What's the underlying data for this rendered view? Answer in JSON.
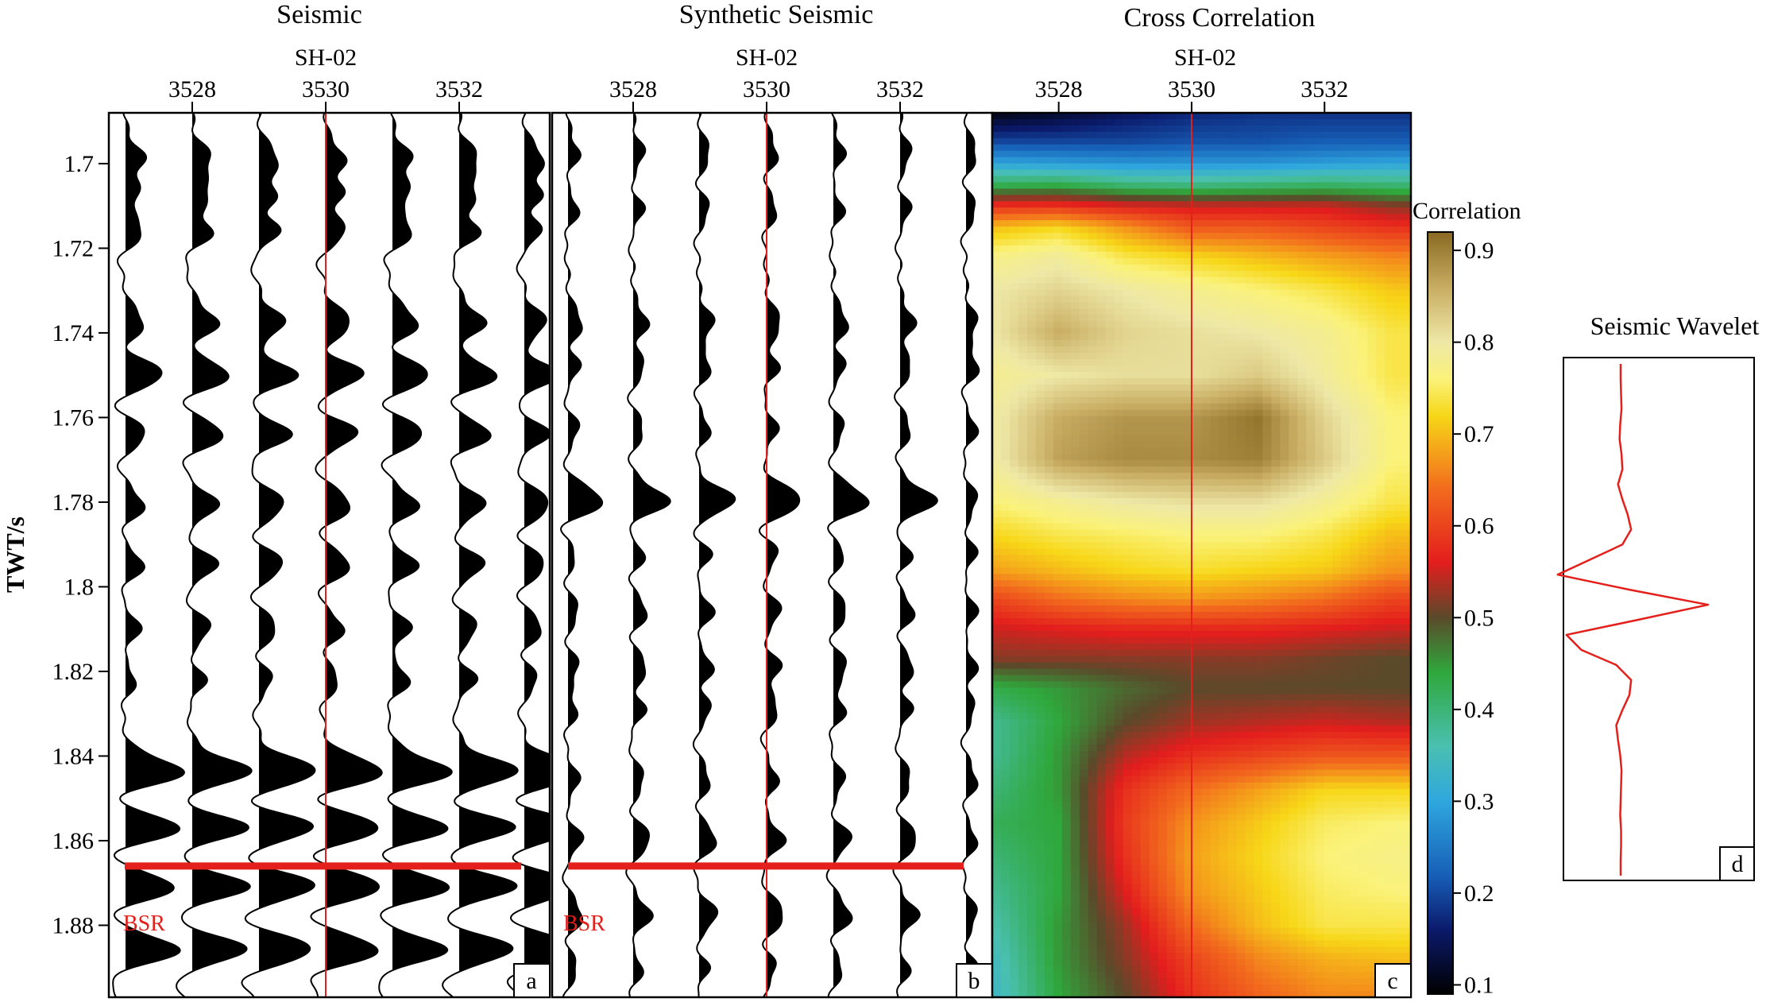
{
  "chart_data": [
    {
      "type": "wiggle",
      "panel_label": "a",
      "title": "Seismic",
      "well_label": "SH-02",
      "well_trace": 3530,
      "x_ticks": [
        3528,
        3530,
        3532
      ],
      "y_ticks": [
        1.7,
        1.72,
        1.74,
        1.76,
        1.78,
        1.8,
        1.82,
        1.84,
        1.86,
        1.88
      ],
      "ylabel": "TWT/s",
      "ylim": [
        1.688,
        1.897
      ],
      "trace_numbers": [
        3527,
        3528,
        3529,
        3530,
        3531,
        3532,
        3533
      ],
      "horizon": {
        "label": "BSR",
        "time": 1.866,
        "color": "#e3201b"
      },
      "peaks": [
        {
          "t": 1.699,
          "amp": [
            0.5,
            0.5,
            0.5,
            0.5,
            0.5,
            0.5,
            0.5
          ]
        },
        {
          "t": 1.707,
          "amp": [
            0.5,
            0.6,
            0.6,
            0.6,
            0.6,
            0.6,
            0.6
          ]
        },
        {
          "t": 1.716,
          "amp": [
            0.6,
            0.7,
            0.7,
            0.7,
            0.7,
            0.7,
            0.6
          ]
        },
        {
          "t": 1.738,
          "amp": [
            0.5,
            0.7,
            0.7,
            0.7,
            0.7,
            0.7,
            0.6
          ]
        },
        {
          "t": 1.75,
          "amp": [
            1.1,
            1.1,
            1.1,
            1.1,
            1.1,
            1.1,
            1.0
          ]
        },
        {
          "t": 1.764,
          "amp": [
            0.6,
            0.9,
            0.9,
            0.9,
            0.9,
            0.9,
            0.7
          ]
        },
        {
          "t": 1.781,
          "amp": [
            0.5,
            0.7,
            0.7,
            0.7,
            0.7,
            0.7,
            0.7
          ]
        },
        {
          "t": 1.795,
          "amp": [
            0.5,
            0.7,
            0.7,
            0.7,
            0.7,
            0.7,
            0.6
          ]
        },
        {
          "t": 1.81,
          "amp": [
            0.4,
            0.5,
            0.5,
            0.5,
            0.5,
            0.5,
            0.5
          ]
        },
        {
          "t": 1.822,
          "amp": [
            0.3,
            0.4,
            0.4,
            0.4,
            0.5,
            0.5,
            0.4
          ]
        },
        {
          "t": 1.844,
          "amp": [
            1.6,
            1.6,
            1.6,
            1.6,
            1.6,
            1.6,
            1.6
          ]
        },
        {
          "t": 1.857,
          "amp": [
            1.6,
            1.6,
            1.6,
            1.6,
            1.6,
            1.6,
            1.6
          ]
        },
        {
          "t": 1.871,
          "amp": [
            1.4,
            1.6,
            1.6,
            1.6,
            1.6,
            1.6,
            1.5
          ]
        },
        {
          "t": 1.886,
          "amp": [
            1.5,
            1.5,
            1.5,
            1.5,
            1.5,
            1.5,
            1.5
          ]
        }
      ]
    },
    {
      "type": "wiggle",
      "panel_label": "b",
      "title": "Synthetic Seismic",
      "well_label": "SH-02",
      "well_trace": 3530,
      "x_ticks": [
        3528,
        3530,
        3532
      ],
      "ylim": [
        1.688,
        1.897
      ],
      "trace_numbers": [
        3527,
        3528,
        3529,
        3530,
        3531,
        3532,
        3533
      ],
      "horizon": {
        "label": "BSR",
        "time": 1.866,
        "color": "#e3201b"
      },
      "peaks": [
        {
          "t": 1.698,
          "amp": [
            0.3,
            0.3,
            0.3,
            0.3,
            0.3,
            0.3,
            0.3
          ]
        },
        {
          "t": 1.711,
          "amp": [
            0.3,
            0.3,
            0.3,
            0.3,
            0.3,
            0.3,
            0.3
          ]
        },
        {
          "t": 1.738,
          "amp": [
            0.4,
            0.4,
            0.4,
            0.4,
            0.4,
            0.4,
            0.3
          ]
        },
        {
          "t": 1.748,
          "amp": [
            0.4,
            0.4,
            0.4,
            0.4,
            0.4,
            0.4,
            0.4
          ]
        },
        {
          "t": 1.763,
          "amp": [
            0.3,
            0.3,
            0.3,
            0.3,
            0.3,
            0.3,
            0.3
          ]
        },
        {
          "t": 1.78,
          "amp": [
            1.0,
            1.0,
            1.0,
            1.0,
            1.0,
            1.0,
            0.3
          ]
        },
        {
          "t": 1.792,
          "amp": [
            0.3,
            0.4,
            0.4,
            0.4,
            0.4,
            0.4,
            0.3
          ]
        },
        {
          "t": 1.806,
          "amp": [
            0.3,
            0.4,
            0.4,
            0.4,
            0.4,
            0.4,
            0.3
          ]
        },
        {
          "t": 1.819,
          "amp": [
            0.3,
            0.4,
            0.4,
            0.4,
            0.4,
            0.4,
            0.3
          ]
        },
        {
          "t": 1.829,
          "amp": [
            0.3,
            0.4,
            0.4,
            0.4,
            0.4,
            0.4,
            0.3
          ]
        },
        {
          "t": 1.846,
          "amp": [
            0.3,
            0.3,
            0.3,
            0.3,
            0.3,
            0.3,
            0.3
          ]
        },
        {
          "t": 1.86,
          "amp": [
            0.4,
            0.5,
            0.5,
            0.5,
            0.5,
            0.5,
            0.3
          ]
        },
        {
          "t": 1.878,
          "amp": [
            0.4,
            0.5,
            0.5,
            0.5,
            0.5,
            0.5,
            0.3
          ]
        },
        {
          "t": 1.89,
          "amp": [
            0.3,
            0.3,
            0.3,
            0.3,
            0.3,
            0.3,
            0.3
          ]
        }
      ]
    },
    {
      "type": "heatmap",
      "panel_label": "c",
      "title": "Cross Correlation",
      "well_label": "SH-02",
      "well_trace": 3530,
      "x_ticks": [
        3528,
        3530,
        3532
      ],
      "x_range": [
        3527,
        3533.3
      ],
      "ylim": [
        1.688,
        1.897
      ],
      "colorbar": {
        "label": "Correlation",
        "ticks": [
          0.1,
          0.2,
          0.3,
          0.4,
          0.5,
          0.6,
          0.7,
          0.8,
          0.9
        ],
        "range": [
          0.09,
          0.92
        ],
        "colors": [
          {
            "v": 0.09,
            "c": "#000000"
          },
          {
            "v": 0.16,
            "c": "#0b1a6b"
          },
          {
            "v": 0.22,
            "c": "#1760b8"
          },
          {
            "v": 0.3,
            "c": "#2fa7de"
          },
          {
            "v": 0.36,
            "c": "#4ac0b0"
          },
          {
            "v": 0.44,
            "c": "#2fa83c"
          },
          {
            "v": 0.5,
            "c": "#5a4a2a"
          },
          {
            "v": 0.56,
            "c": "#e31d1d"
          },
          {
            "v": 0.64,
            "c": "#f26b1d"
          },
          {
            "v": 0.72,
            "c": "#f7d718"
          },
          {
            "v": 0.76,
            "c": "#faf27a"
          },
          {
            "v": 0.8,
            "c": "#eee8a6"
          },
          {
            "v": 0.86,
            "c": "#c8ac62"
          },
          {
            "v": 0.92,
            "c": "#8a6a22"
          }
        ]
      },
      "times": [
        1.688,
        1.695,
        1.7,
        1.705,
        1.71,
        1.715,
        1.722,
        1.73,
        1.74,
        1.75,
        1.76,
        1.77,
        1.78,
        1.788,
        1.796,
        1.803,
        1.81,
        1.817,
        1.824,
        1.832,
        1.84,
        1.848,
        1.856,
        1.864,
        1.872,
        1.88,
        1.888,
        1.897
      ],
      "traces": [
        3527,
        3528,
        3529,
        3530,
        3531,
        3532,
        3533
      ],
      "values": [
        [
          0.1,
          0.12,
          0.15,
          0.17,
          0.18,
          0.18,
          0.18
        ],
        [
          0.2,
          0.2,
          0.2,
          0.21,
          0.21,
          0.22,
          0.22
        ],
        [
          0.3,
          0.29,
          0.28,
          0.28,
          0.28,
          0.29,
          0.3
        ],
        [
          0.42,
          0.43,
          0.4,
          0.39,
          0.4,
          0.41,
          0.4
        ],
        [
          0.58,
          0.58,
          0.56,
          0.55,
          0.55,
          0.55,
          0.52
        ],
        [
          0.7,
          0.72,
          0.67,
          0.62,
          0.62,
          0.6,
          0.58
        ],
        [
          0.77,
          0.79,
          0.74,
          0.72,
          0.7,
          0.68,
          0.66
        ],
        [
          0.8,
          0.82,
          0.8,
          0.78,
          0.76,
          0.74,
          0.71
        ],
        [
          0.8,
          0.86,
          0.82,
          0.81,
          0.8,
          0.78,
          0.74
        ],
        [
          0.78,
          0.8,
          0.81,
          0.81,
          0.83,
          0.79,
          0.74
        ],
        [
          0.79,
          0.86,
          0.88,
          0.88,
          0.91,
          0.82,
          0.76
        ],
        [
          0.79,
          0.87,
          0.89,
          0.89,
          0.9,
          0.83,
          0.76
        ],
        [
          0.76,
          0.78,
          0.8,
          0.81,
          0.81,
          0.78,
          0.74
        ],
        [
          0.72,
          0.74,
          0.75,
          0.76,
          0.76,
          0.74,
          0.7
        ],
        [
          0.68,
          0.7,
          0.72,
          0.73,
          0.72,
          0.71,
          0.67
        ],
        [
          0.6,
          0.64,
          0.66,
          0.67,
          0.66,
          0.64,
          0.6
        ],
        [
          0.55,
          0.56,
          0.57,
          0.57,
          0.57,
          0.56,
          0.55
        ],
        [
          0.52,
          0.52,
          0.52,
          0.52,
          0.52,
          0.51,
          0.5
        ],
        [
          0.43,
          0.45,
          0.48,
          0.5,
          0.5,
          0.5,
          0.5
        ],
        [
          0.38,
          0.44,
          0.5,
          0.53,
          0.54,
          0.55,
          0.54
        ],
        [
          0.38,
          0.45,
          0.54,
          0.58,
          0.6,
          0.62,
          0.62
        ],
        [
          0.4,
          0.45,
          0.58,
          0.64,
          0.68,
          0.72,
          0.72
        ],
        [
          0.42,
          0.44,
          0.59,
          0.67,
          0.71,
          0.75,
          0.76
        ],
        [
          0.4,
          0.44,
          0.58,
          0.68,
          0.72,
          0.76,
          0.77
        ],
        [
          0.38,
          0.44,
          0.56,
          0.67,
          0.71,
          0.75,
          0.76
        ],
        [
          0.36,
          0.45,
          0.53,
          0.64,
          0.7,
          0.74,
          0.74
        ],
        [
          0.34,
          0.45,
          0.52,
          0.6,
          0.66,
          0.69,
          0.7
        ],
        [
          0.33,
          0.44,
          0.5,
          0.58,
          0.63,
          0.66,
          0.66
        ]
      ]
    },
    {
      "type": "line",
      "panel_label": "d",
      "title": "Seismic Wavelet",
      "color": "#e3201b",
      "samples": [
        0,
        0,
        0.005,
        0.01,
        -0.005,
        -0.012,
        0.01,
        0.02,
        -0.03,
        0.02,
        0.08,
        0.12,
        0.02,
        -0.35,
        -0.72,
        0.1,
        1.0,
        0.2,
        -0.62,
        -0.45,
        -0.05,
        0.12,
        0.1,
        0.02,
        -0.05,
        -0.03,
        -0.005,
        0.01,
        0.005,
        0,
        -0.005,
        0.005,
        0.005,
        0,
        0
      ]
    }
  ]
}
